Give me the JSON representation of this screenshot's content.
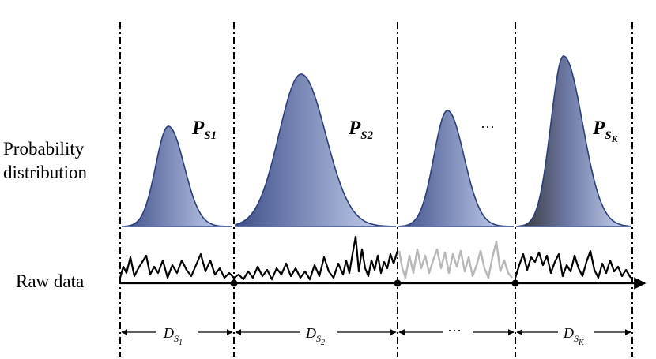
{
  "labels": {
    "probability_line1": "Probability",
    "probability_line2": "distribution",
    "raw_data": "Raw data"
  },
  "segments": [
    {
      "dist_main": "P",
      "dist_sub": "S1",
      "dist_subsub": "",
      "data_main": "D",
      "data_sub": "S",
      "data_subsub": "1",
      "raw_style": "solid",
      "shade": "blue"
    },
    {
      "dist_main": "P",
      "dist_sub": "S2",
      "dist_subsub": "",
      "data_main": "D",
      "data_sub": "S",
      "data_subsub": "2",
      "raw_style": "solid",
      "shade": "blue"
    },
    {
      "dist_main": "",
      "dist_sub": "",
      "dist_subsub": "",
      "dist_ellipsis": "···",
      "data_main": "",
      "data_sub": "",
      "data_subsub": "",
      "data_ellipsis": "···",
      "raw_style": "faded",
      "shade": "blue"
    },
    {
      "dist_main": "P",
      "dist_sub": "S",
      "dist_subsub": "K",
      "data_main": "D",
      "data_sub": "S",
      "data_subsub": "K",
      "raw_style": "solid",
      "shade": "dark"
    }
  ],
  "colors": {
    "curve_stroke": "#2a3f7a",
    "fill_dark": "#4a5a8e",
    "fill_light": "#c8d4f4",
    "fill_black": "#3a3a3a",
    "raw_solid": "#000000",
    "raw_faded": "#b8b8b8",
    "axis": "#000000"
  }
}
